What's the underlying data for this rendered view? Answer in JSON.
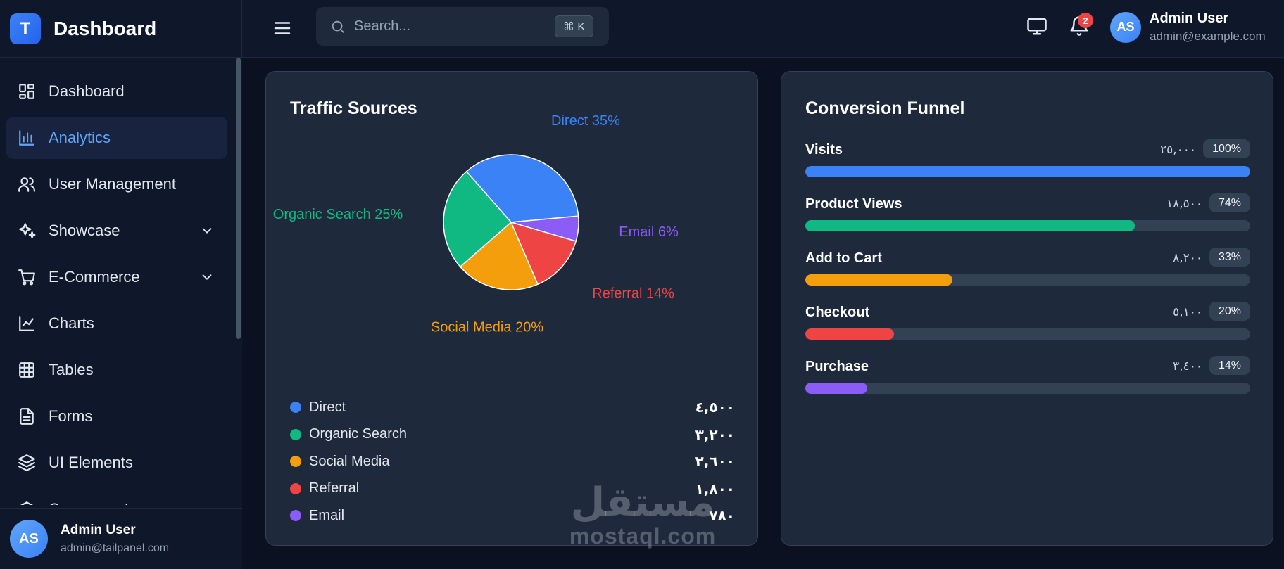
{
  "brand": {
    "logo_letter": "T",
    "name": "Dashboard"
  },
  "sidebar": {
    "items": [
      {
        "label": "Dashboard",
        "icon": "grid-icon",
        "active": false,
        "has_chevron": false
      },
      {
        "label": "Analytics",
        "icon": "bar-chart-icon",
        "active": true,
        "has_chevron": false
      },
      {
        "label": "User Management",
        "icon": "users-icon",
        "active": false,
        "has_chevron": false
      },
      {
        "label": "Showcase",
        "icon": "sparkles-icon",
        "active": false,
        "has_chevron": true
      },
      {
        "label": "E-Commerce",
        "icon": "cart-icon",
        "active": false,
        "has_chevron": true
      },
      {
        "label": "Charts",
        "icon": "line-chart-icon",
        "active": false,
        "has_chevron": false
      },
      {
        "label": "Tables",
        "icon": "table-icon",
        "active": false,
        "has_chevron": false
      },
      {
        "label": "Forms",
        "icon": "file-icon",
        "active": false,
        "has_chevron": false
      },
      {
        "label": "UI Elements",
        "icon": "layers-icon",
        "active": false,
        "has_chevron": false
      },
      {
        "label": "Components",
        "icon": "box-icon",
        "active": false,
        "has_chevron": false
      }
    ],
    "user": {
      "initials": "AS",
      "name": "Admin User",
      "email": "admin@tailpanel.com"
    }
  },
  "header": {
    "search_placeholder": "Search...",
    "shortcut": "⌘ K",
    "notification_count": "2",
    "user": {
      "initials": "AS",
      "name": "Admin User",
      "email": "admin@example.com"
    }
  },
  "traffic": {
    "title": "Traffic Sources",
    "chart_data": {
      "type": "pie",
      "slices": [
        {
          "label": "Direct",
          "percent": 35,
          "color": "#3b82f6",
          "pie_label": "Direct 35%"
        },
        {
          "label": "Email",
          "percent": 6,
          "color": "#8b5cf6",
          "pie_label": "Email 6%"
        },
        {
          "label": "Referral",
          "percent": 14,
          "color": "#ef4444",
          "pie_label": "Referral 14%"
        },
        {
          "label": "Social Media",
          "percent": 20,
          "color": "#f59e0b",
          "pie_label": "Social Media 20%"
        },
        {
          "label": "Organic Search",
          "percent": 25,
          "color": "#10b981",
          "pie_label": "Organic Search 25%"
        }
      ]
    },
    "legend": [
      {
        "label": "Direct",
        "value": "٤,٥٠٠",
        "color": "#3b82f6"
      },
      {
        "label": "Organic Search",
        "value": "٣,٢٠٠",
        "color": "#10b981"
      },
      {
        "label": "Social Media",
        "value": "٢,٦٠٠",
        "color": "#f59e0b"
      },
      {
        "label": "Referral",
        "value": "١,٨٠٠",
        "color": "#ef4444"
      },
      {
        "label": "Email",
        "value": "٧٨٠",
        "color": "#8b5cf6"
      }
    ]
  },
  "funnel": {
    "title": "Conversion Funnel",
    "steps": [
      {
        "label": "Visits",
        "count": "٢٥,٠٠٠",
        "percent_label": "100%",
        "percent": 100,
        "color": "#3b82f6"
      },
      {
        "label": "Product Views",
        "count": "١٨,٥٠٠",
        "percent_label": "74%",
        "percent": 74,
        "color": "#10b981"
      },
      {
        "label": "Add to Cart",
        "count": "٨,٢٠٠",
        "percent_label": "33%",
        "percent": 33,
        "color": "#f59e0b"
      },
      {
        "label": "Checkout",
        "count": "٥,١٠٠",
        "percent_label": "20%",
        "percent": 20,
        "color": "#ef4444"
      },
      {
        "label": "Purchase",
        "count": "٣,٤٠٠",
        "percent_label": "14%",
        "percent": 14,
        "color": "#8b5cf6"
      }
    ]
  },
  "watermark": {
    "arabic": "مستقل",
    "latin": "mostaql.com"
  }
}
